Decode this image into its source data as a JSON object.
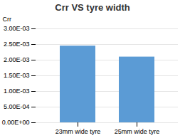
{
  "chart_data": {
    "type": "bar",
    "title": "Crr VS tyre width",
    "categories": [
      "23mm wide tyre",
      "25mm wide tyre"
    ],
    "values": [
      0.00245,
      0.0021
    ],
    "color": "#5b9bd5",
    "ylabel": "Crr",
    "ylim": [
      0.0,
      0.003
    ],
    "yticks": [
      {
        "value": 0.0,
        "label": "0.00E+00"
      },
      {
        "value": 0.0005,
        "label": "5.00E-04"
      },
      {
        "value": 0.001,
        "label": "1.00E-03"
      },
      {
        "value": 0.0015,
        "label": "1.50E-03"
      },
      {
        "value": 0.002,
        "label": "2.00E-03"
      },
      {
        "value": 0.0025,
        "label": "2.50E-03"
      },
      {
        "value": 0.003,
        "label": "3.00E-03"
      }
    ],
    "grid": true
  }
}
